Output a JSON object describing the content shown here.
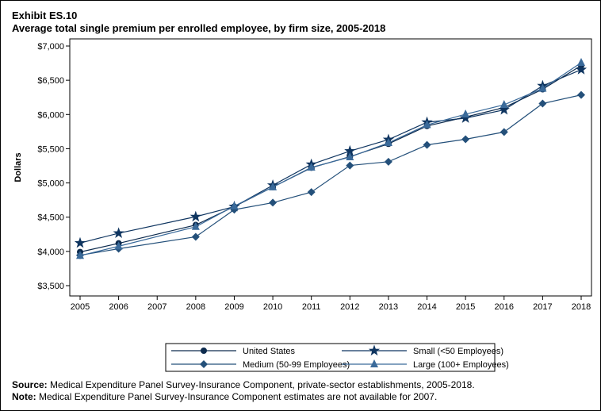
{
  "exhibit": "Exhibit ES.10",
  "title": "Average total single premium per enrolled employee, by firm size, 2005-2018",
  "footer": {
    "source_label": "Source:",
    "source_text": "Medical Expenditure Panel Survey-Insurance Component, private-sector establishments, 2005-2018.",
    "note_label": "Note:",
    "note_text": "Medical Expenditure Panel Survey-Insurance Component estimates are not available for 2007."
  },
  "chart_data": {
    "type": "line",
    "title": "Average total single premium per enrolled employee, by firm size, 2005-2018",
    "xlabel": "",
    "ylabel": "Dollars",
    "x_ticks": [
      "2005",
      "2006",
      "2007",
      "2008",
      "2009",
      "2010",
      "2011",
      "2012",
      "2013",
      "2014",
      "2015",
      "2016",
      "2017",
      "2018"
    ],
    "y_ticks": [
      "$3,500",
      "$4,000",
      "$4,500",
      "$5,000",
      "$5,500",
      "$6,000",
      "$6,500",
      "$7,000"
    ],
    "y_tick_values": [
      3500,
      4000,
      4500,
      5000,
      5500,
      6000,
      6500,
      7000
    ],
    "ylim": [
      3500,
      7000
    ],
    "xlim": [
      2005,
      2018
    ],
    "legend_position": "bottom",
    "x": [
      2005,
      2006,
      2008,
      2009,
      2010,
      2011,
      2012,
      2013,
      2014,
      2015,
      2016,
      2017,
      2018
    ],
    "series": [
      {
        "name": "United States",
        "marker": "circle",
        "color": "#0d2b4e",
        "values": [
          3991,
          4118,
          4386,
          4655,
          4940,
          5222,
          5384,
          5571,
          5832,
          5963,
          6101,
          6368,
          6715
        ]
      },
      {
        "name": "Small (<50 Employees)",
        "marker": "star",
        "color": "#0f3560",
        "values": [
          4122,
          4266,
          4507,
          4654,
          4966,
          5271,
          5465,
          5633,
          5886,
          5947,
          6068,
          6419,
          6655
        ]
      },
      {
        "name": "Medium (50-99 Employees)",
        "marker": "diamond",
        "color": "#24507a",
        "values": [
          3944,
          4039,
          4213,
          4610,
          4712,
          4866,
          5255,
          5310,
          5556,
          5638,
          5744,
          6160,
          6286
        ]
      },
      {
        "name": "Large (100+ Employees)",
        "marker": "triangle",
        "color": "#3a6a9a",
        "values": [
          3937,
          4075,
          4360,
          4662,
          4939,
          5227,
          5378,
          5586,
          5848,
          6004,
          6142,
          6379,
          6756
        ]
      }
    ]
  }
}
